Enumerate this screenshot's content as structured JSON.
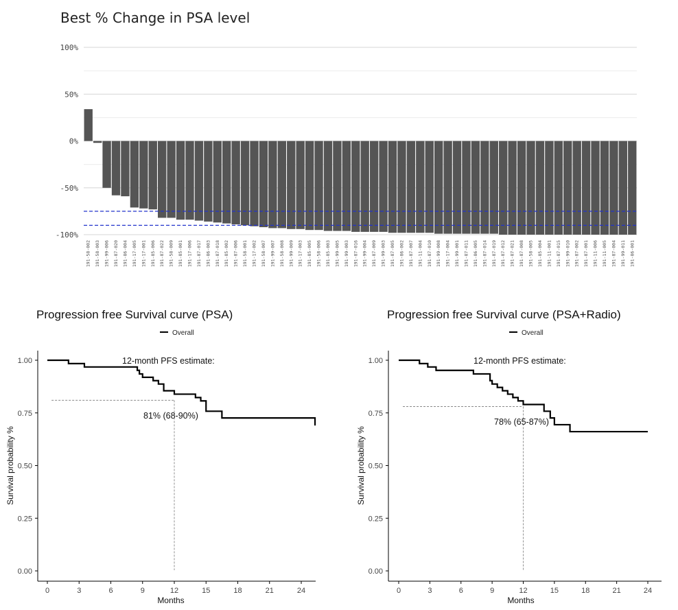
{
  "chart_data": [
    {
      "type": "bar",
      "title": "Best % Change in PSA level",
      "ylim": [
        -100,
        100
      ],
      "yticks": [
        100,
        50,
        0,
        -50,
        -100
      ],
      "ytick_labels": [
        "100%",
        "50%",
        "0%",
        "-50%",
        "-100%"
      ],
      "reference_lines": [
        -75,
        -90
      ],
      "reference_line_color": "#2233cc",
      "bar_color": "#555555",
      "grid": true,
      "categories": [
        "191-58-002",
        "191-58-003",
        "191-99-006",
        "191-87-020",
        "191-86-004",
        "191-17-005",
        "191-17-001",
        "191-85-006",
        "191-87-022",
        "191-58-009",
        "191-85-001",
        "191-17-006",
        "191-87-017",
        "191-86-003",
        "191-87-018",
        "191-85-002",
        "191-87-006",
        "191-58-001",
        "191-17-002",
        "191-58-007",
        "191-99-007",
        "191-58-008",
        "191-99-009",
        "191-17-003",
        "191-85-005",
        "191-58-006",
        "191-85-003",
        "191-99-005",
        "191-99-003",
        "191-87-016",
        "191-99-004",
        "191-87-009",
        "191-99-003",
        "191-87-005",
        "191-86-002",
        "191-87-007",
        "191-11-004",
        "191-87-010",
        "191-99-008",
        "191-17-004",
        "191-99-001",
        "191-87-011",
        "191-86-005",
        "191-87-014",
        "191-87-019",
        "191-87-012",
        "191-87-021",
        "191-87-008",
        "191-58-005",
        "191-85-004",
        "191-11-001",
        "191-87-015",
        "191-99-010",
        "191-87-002",
        "191-87-001",
        "191-11-006",
        "191-11-005",
        "191-87-004",
        "191-99-011",
        "191-86-001"
      ],
      "values": [
        34,
        -2,
        -50,
        -58,
        -59,
        -71,
        -72,
        -73,
        -82,
        -82,
        -84,
        -84,
        -85,
        -86,
        -87,
        -88,
        -89,
        -90,
        -91,
        -92,
        -93,
        -93,
        -94,
        -94,
        -95,
        -95,
        -96,
        -96,
        -96,
        -97,
        -97,
        -97,
        -97,
        -98,
        -98,
        -98,
        -98,
        -98,
        -99,
        -99,
        -99,
        -99,
        -99,
        -99,
        -99,
        -100,
        -100,
        -100,
        -100,
        -100,
        -100,
        -100,
        -100,
        -100,
        -100,
        -100,
        -100,
        -100,
        -100,
        -100
      ]
    },
    {
      "type": "line",
      "title": "Progression free Survival curve (PSA)",
      "legend": [
        "Overall"
      ],
      "legend_position": "top",
      "xlabel": "Months",
      "ylabel": "Survival probability %",
      "xlim": [
        0,
        25
      ],
      "ylim": [
        0,
        1
      ],
      "xticks": [
        0,
        3,
        6,
        9,
        12,
        15,
        18,
        21,
        24
      ],
      "yticks": [
        "0.00",
        "0.25",
        "0.50",
        "0.75",
        "1.00"
      ],
      "series": [
        {
          "name": "Overall",
          "x": [
            0,
            2,
            3.5,
            8.5,
            8.7,
            9,
            10,
            10.5,
            11,
            12,
            14,
            14.5,
            15,
            16.5,
            25.3
          ],
          "y": [
            1,
            0.984,
            0.968,
            0.952,
            0.935,
            0.919,
            0.903,
            0.887,
            0.855,
            0.839,
            0.823,
            0.807,
            0.758,
            0.726,
            0.69
          ]
        }
      ],
      "estimate_x": 12,
      "estimate_y": 0.81,
      "annotation_title": "12-month  PFS estimate:",
      "annotation_value": "81% (68-90%)"
    },
    {
      "type": "line",
      "title": "Progression free Survival curve (PSA+Radio)",
      "legend": [
        "Overall"
      ],
      "legend_position": "top",
      "xlabel": "Months",
      "ylabel": "Survival probability %",
      "xlim": [
        0,
        25
      ],
      "ylim": [
        0,
        1
      ],
      "xticks": [
        0,
        3,
        6,
        9,
        12,
        15,
        18,
        21,
        24
      ],
      "yticks": [
        "0.00",
        "0.25",
        "0.50",
        "0.75",
        "1.00"
      ],
      "series": [
        {
          "name": "Overall",
          "x": [
            0,
            2,
            2.8,
            3.6,
            7.2,
            8.8,
            9,
            9.5,
            10,
            10.5,
            11,
            11.5,
            12,
            14,
            14.6,
            15,
            16.5,
            24
          ],
          "y": [
            1,
            0.984,
            0.968,
            0.952,
            0.935,
            0.903,
            0.887,
            0.871,
            0.855,
            0.839,
            0.823,
            0.807,
            0.79,
            0.758,
            0.726,
            0.694,
            0.661,
            0.661
          ]
        }
      ],
      "estimate_x": 12,
      "estimate_y": 0.78,
      "annotation_title": "12-month  PFS estimate:",
      "annotation_value": "78% (65-87%)"
    }
  ]
}
